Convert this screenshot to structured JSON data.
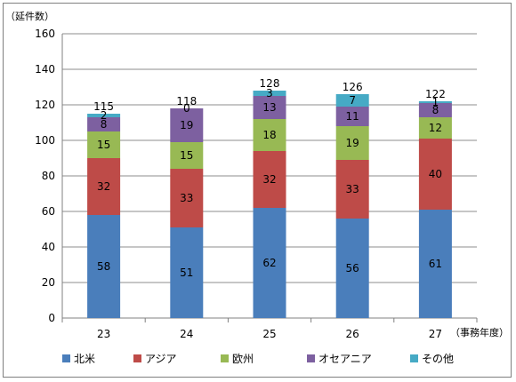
{
  "chart_data": {
    "type": "bar",
    "stacked": true,
    "ylabel": "（延件数）",
    "xlabel": "（事務年度）",
    "categories": [
      "23",
      "24",
      "25",
      "26",
      "27"
    ],
    "ylim": [
      0,
      160
    ],
    "yticks": [
      0,
      20,
      40,
      60,
      80,
      100,
      120,
      140,
      160
    ],
    "grid": true,
    "legend_position": "bottom",
    "series": [
      {
        "name": "北米",
        "color": "#4a7ebb",
        "values": [
          58,
          51,
          62,
          56,
          61
        ]
      },
      {
        "name": "アジア",
        "color": "#be4b48",
        "values": [
          32,
          33,
          32,
          33,
          40
        ]
      },
      {
        "name": "欧州",
        "color": "#98b954",
        "values": [
          15,
          15,
          18,
          19,
          12
        ]
      },
      {
        "name": "オセアニア",
        "color": "#7d60a0",
        "values": [
          8,
          19,
          13,
          11,
          8
        ]
      },
      {
        "name": "その他",
        "color": "#46aac5",
        "values": [
          2,
          0,
          3,
          7,
          1
        ]
      }
    ],
    "totals": [
      115,
      118,
      128,
      126,
      122
    ]
  }
}
